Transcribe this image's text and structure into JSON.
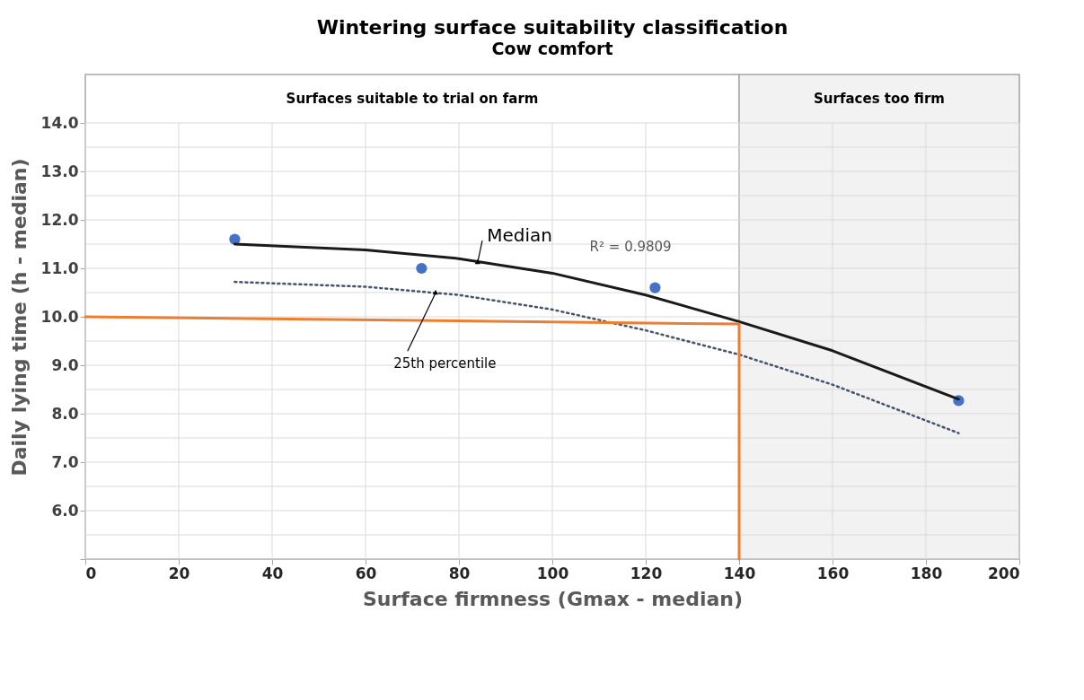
{
  "chart_data": {
    "type": "scatter",
    "title": "Wintering surface suitability classification",
    "subtitle": "Cow comfort",
    "xlabel": "Surface firmness (Gmax - median)",
    "ylabel": "Daily lying time (h - median)",
    "xlim": [
      0,
      200
    ],
    "xticks": [
      0,
      20,
      40,
      60,
      80,
      100,
      120,
      140,
      160,
      180,
      200
    ],
    "ylim": [
      5,
      15
    ],
    "yticks": [
      {
        "value": 5,
        "label": null
      },
      {
        "value": 5.5,
        "label": null
      },
      {
        "value": 6,
        "label": "6.0"
      },
      {
        "value": 6.5,
        "label": null
      },
      {
        "value": 7,
        "label": "7.0"
      },
      {
        "value": 7.5,
        "label": null
      },
      {
        "value": 8,
        "label": "8.0"
      },
      {
        "value": 8.5,
        "label": null
      },
      {
        "value": 9,
        "label": "9.0"
      },
      {
        "value": 9.5,
        "label": null
      },
      {
        "value": 10,
        "label": "10.0"
      },
      {
        "value": 10.5,
        "label": null
      },
      {
        "value": 11,
        "label": "11.0"
      },
      {
        "value": 11.5,
        "label": null
      },
      {
        "value": 12,
        "label": "12.0"
      },
      {
        "value": 12.5,
        "label": null
      },
      {
        "value": 13,
        "label": "13.0"
      },
      {
        "value": 13.5,
        "label": null
      },
      {
        "value": 14,
        "label": "14.0"
      },
      {
        "value": 15,
        "label": null
      }
    ],
    "grid": true,
    "series": [
      {
        "marker": "circle",
        "color": "#4472c4",
        "x": [
          32,
          72,
          122,
          187
        ],
        "values": [
          11.6,
          11.0,
          10.6,
          8.27
        ]
      },
      {
        "type": "line",
        "marker": "none",
        "line_style": "solid",
        "color": "#1a1a1a",
        "x": [
          32,
          60,
          80,
          100,
          120,
          140,
          160,
          187
        ],
        "values": [
          11.5,
          11.38,
          11.2,
          10.9,
          10.45,
          9.9,
          9.3,
          8.3
        ]
      },
      {
        "type": "line",
        "marker": "none",
        "line_style": "dotted",
        "color": "#44546a",
        "x": [
          32,
          60,
          80,
          100,
          120,
          140,
          160,
          187
        ],
        "values": [
          10.72,
          10.62,
          10.45,
          10.15,
          9.72,
          9.22,
          8.6,
          7.6
        ]
      },
      {
        "type": "line",
        "marker": "none",
        "line_style": "solid",
        "color": "#ed7d31",
        "x": [
          0,
          140,
          140
        ],
        "values": [
          10.0,
          9.85,
          5.0
        ]
      }
    ],
    "bands": [
      {
        "axis": "x",
        "from": 0,
        "to": 140,
        "label": "Surfaces suitable to trial on farm",
        "color": "#ffffff"
      },
      {
        "axis": "x",
        "from": 140,
        "to": 200,
        "label": "Surfaces too firm",
        "color": "#f2f2f2"
      }
    ],
    "annotations": [
      {
        "text": "Median",
        "x": 84,
        "y": 11.12
      },
      {
        "text": "25th percentile",
        "x": 75,
        "y": 10.49
      },
      "R² = 0.9809"
    ]
  }
}
